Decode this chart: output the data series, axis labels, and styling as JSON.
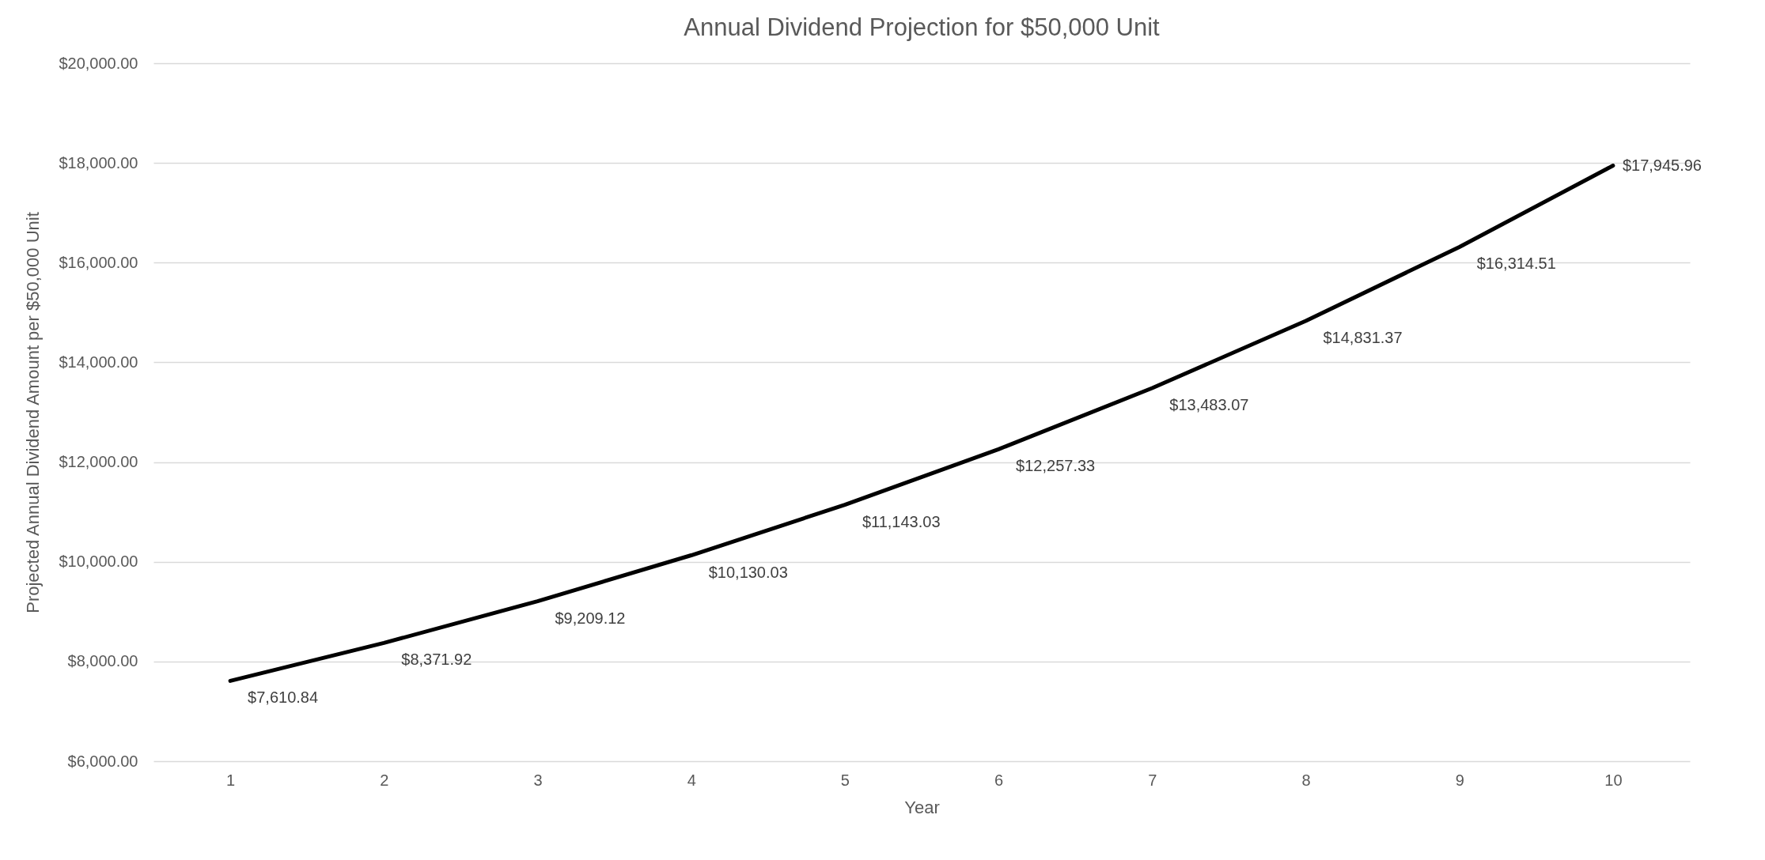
{
  "chart_data": {
    "type": "line",
    "title": "Annual Dividend Projection for $50,000 Unit",
    "xlabel": "Year",
    "ylabel": "Projected Annual Dividend Amount per $50,000 Unit",
    "categories": [
      "1",
      "2",
      "3",
      "4",
      "5",
      "6",
      "7",
      "8",
      "9",
      "10"
    ],
    "series": [
      {
        "color": "#000000",
        "values": [
          7610.84,
          8371.92,
          9209.12,
          10130.03,
          11143.03,
          12257.33,
          13483.07,
          14831.37,
          16314.51,
          17945.96
        ],
        "value_labels": [
          "$7,610.84",
          "$8,371.92",
          "$9,209.12",
          "$10,130.03",
          "$11,143.03",
          "$12,257.33",
          "$13,483.07",
          "$14,831.37",
          "$16,314.51",
          "$17,945.96"
        ]
      }
    ],
    "ylim": [
      6000,
      20000
    ],
    "yticks": [
      {
        "value": 6000,
        "label": "$6,000.00"
      },
      {
        "value": 8000,
        "label": "$8,000.00"
      },
      {
        "value": 10000,
        "label": "$10,000.00"
      },
      {
        "value": 12000,
        "label": "$12,000.00"
      },
      {
        "value": 14000,
        "label": "$14,000.00"
      },
      {
        "value": 16000,
        "label": "$16,000.00"
      },
      {
        "value": 18000,
        "label": "$18,000.00"
      },
      {
        "value": 20000,
        "label": "$20,000.00"
      }
    ],
    "grid": "y",
    "marker": "none",
    "line_style": "solid"
  }
}
